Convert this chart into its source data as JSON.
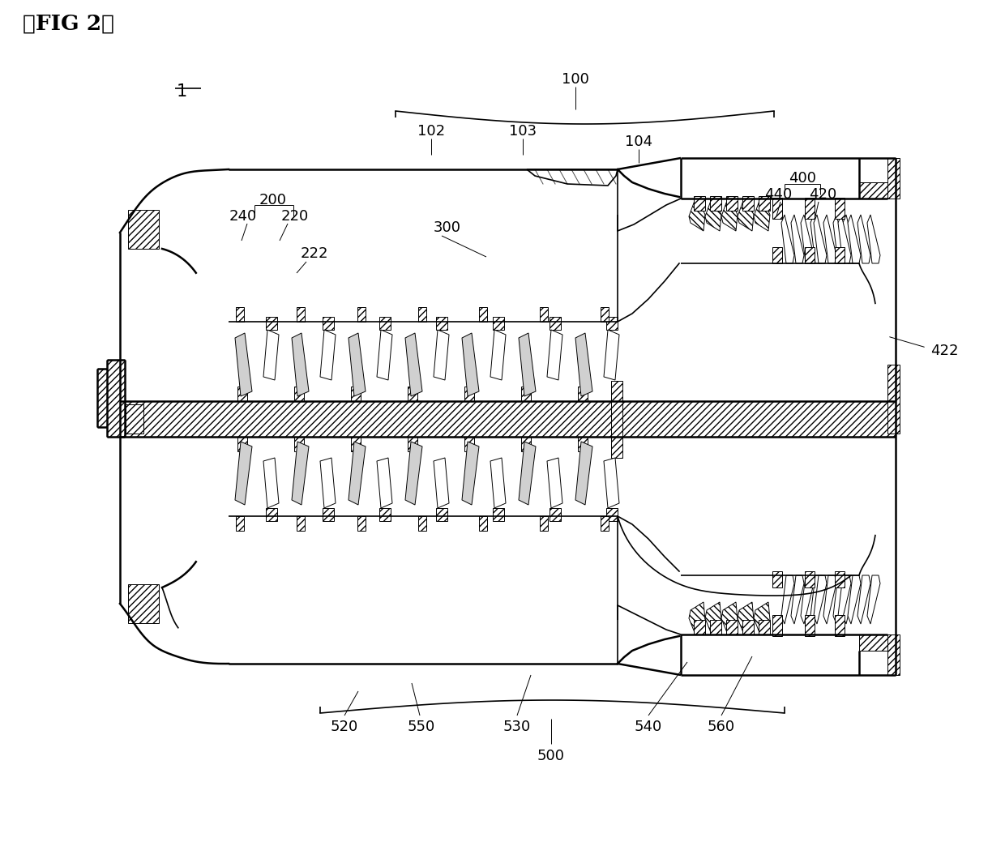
{
  "bg_color": "#ffffff",
  "line_color": "#000000",
  "labels": {
    "fig": "』FIG 2』",
    "main_ref": "1",
    "ref_100": "100",
    "ref_102": "102",
    "ref_103": "103",
    "ref_104": "104",
    "ref_200": "200",
    "ref_220": "220",
    "ref_222": "222",
    "ref_240": "240",
    "ref_300": "300",
    "ref_400": "400",
    "ref_420": "420",
    "ref_422": "422",
    "ref_440": "440",
    "ref_500": "500",
    "ref_520": "520",
    "ref_530": "530",
    "ref_540": "540",
    "ref_550": "550",
    "ref_560": "560"
  },
  "figsize": [
    12.4,
    10.65
  ],
  "dpi": 100
}
